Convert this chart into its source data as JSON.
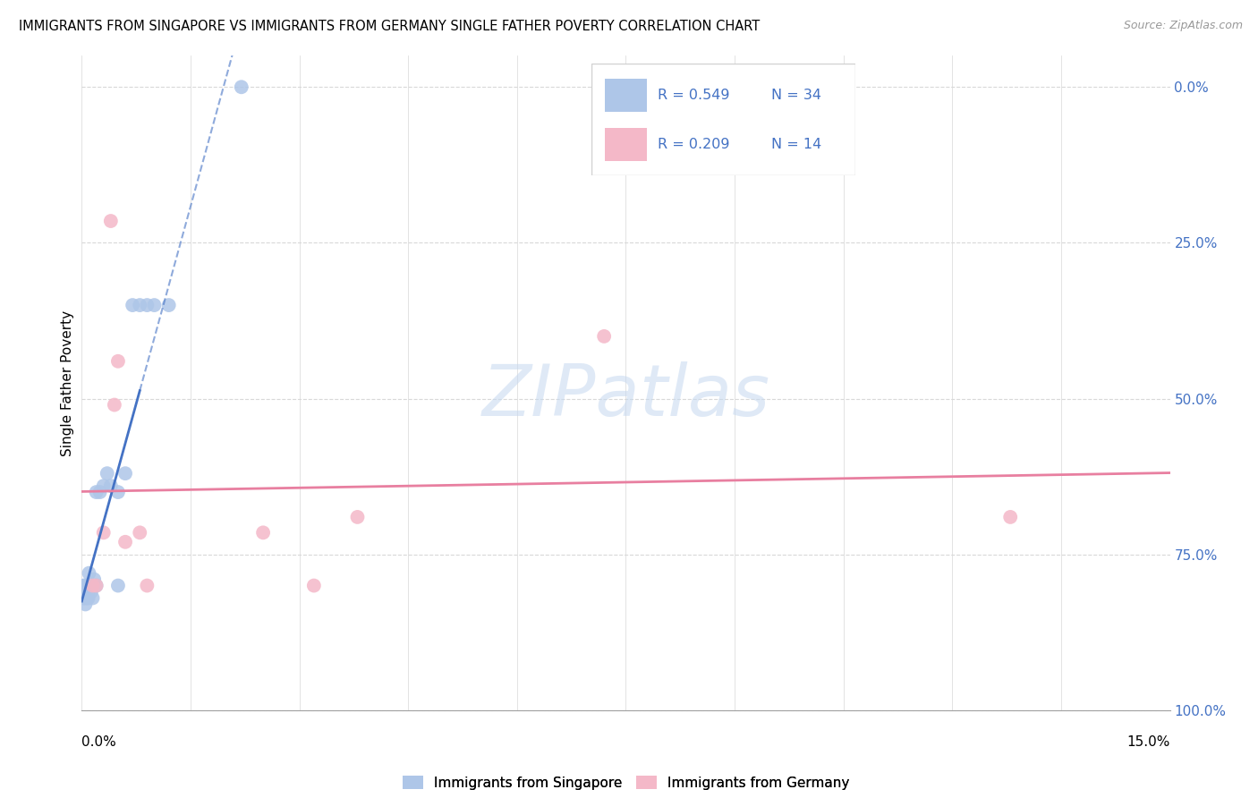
{
  "title": "IMMIGRANTS FROM SINGAPORE VS IMMIGRANTS FROM GERMANY SINGLE FATHER POVERTY CORRELATION CHART",
  "source": "Source: ZipAtlas.com",
  "ylabel": "Single Father Poverty",
  "ylabel_right_ticks": [
    "100.0%",
    "75.0%",
    "50.0%",
    "25.0%",
    "0.0%"
  ],
  "ylabel_right_vals": [
    1.0,
    0.75,
    0.5,
    0.25,
    0.0
  ],
  "watermark": "ZIPatlas",
  "sg_scatter_color": "#aec6e8",
  "de_scatter_color": "#f4b8c8",
  "sg_line_color": "#4472c4",
  "de_line_color": "#e87fa0",
  "singapore_x": [
    0.0002,
    0.0003,
    0.0003,
    0.0004,
    0.0004,
    0.0005,
    0.0005,
    0.0006,
    0.0006,
    0.0007,
    0.0007,
    0.0008,
    0.0009,
    0.001,
    0.001,
    0.0012,
    0.0013,
    0.0015,
    0.0017,
    0.002,
    0.002,
    0.0025,
    0.003,
    0.0035,
    0.004,
    0.005,
    0.005,
    0.006,
    0.007,
    0.008,
    0.009,
    0.01,
    0.012,
    0.022
  ],
  "singapore_y": [
    0.18,
    0.2,
    0.19,
    0.2,
    0.18,
    0.19,
    0.17,
    0.19,
    0.2,
    0.18,
    0.2,
    0.19,
    0.18,
    0.2,
    0.22,
    0.2,
    0.19,
    0.18,
    0.21,
    0.2,
    0.35,
    0.35,
    0.36,
    0.38,
    0.36,
    0.35,
    0.2,
    0.38,
    0.65,
    0.65,
    0.65,
    0.65,
    0.65,
    1.0
  ],
  "germany_x": [
    0.0015,
    0.002,
    0.003,
    0.004,
    0.0045,
    0.005,
    0.006,
    0.008,
    0.009,
    0.025,
    0.032,
    0.038,
    0.072,
    0.128
  ],
  "germany_y": [
    0.2,
    0.2,
    0.285,
    0.785,
    0.49,
    0.56,
    0.27,
    0.285,
    0.2,
    0.285,
    0.2,
    0.31,
    0.6,
    0.31
  ],
  "xmin": 0.0,
  "xmax": 0.15,
  "ymin": 0.0,
  "ymax": 1.05,
  "grid_color": "#d8d8d8",
  "sg_R": 0.549,
  "de_R": 0.209,
  "sg_N": 34,
  "de_N": 14
}
